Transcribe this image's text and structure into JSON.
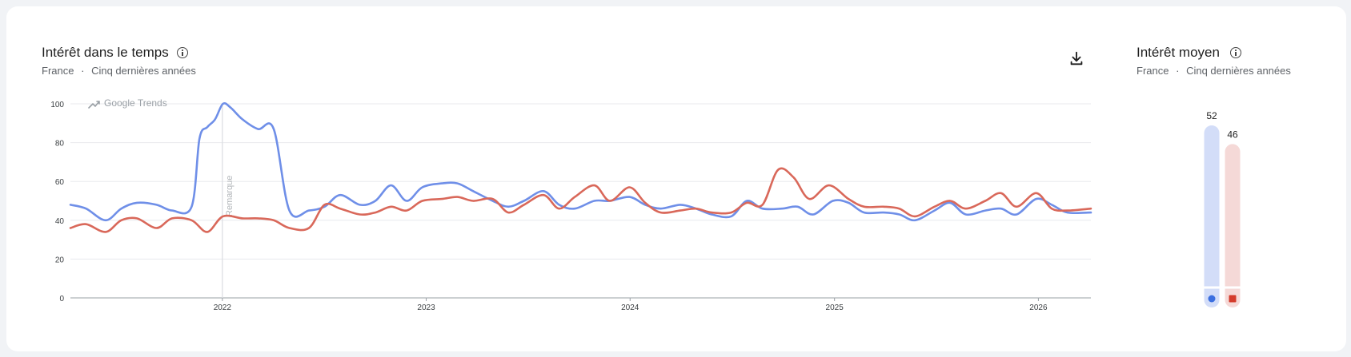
{
  "left_panel": {
    "title": "Intérêt dans le temps",
    "subtitle_region": "France",
    "subtitle_sep": "·",
    "subtitle_period": "Cinq dernières années",
    "watermark": "Google Trends",
    "note_label": "Remarque"
  },
  "right_panel": {
    "title": "Intérêt moyen",
    "subtitle_region": "France",
    "subtitle_sep": "·",
    "subtitle_period": "Cinq dernières années"
  },
  "icons": {
    "info": "info-icon",
    "download": "download-icon"
  },
  "colors": {
    "series1": "#6f8fe8",
    "series2": "#d9685a",
    "series1_light": "#d3ddf8",
    "series2_light": "#f5d9d7",
    "series1_dot": "#3b6fe0",
    "series2_dot": "#d43b2b"
  },
  "chart_data": [
    {
      "type": "line",
      "title": "Intérêt dans le temps",
      "ylim": [
        0,
        100
      ],
      "yticks": [
        0,
        20,
        40,
        60,
        80,
        100
      ],
      "xlim": [
        "2021-04-04",
        "2026-04-05"
      ],
      "xticks": [
        {
          "date": "2022-01-01",
          "label": "2022"
        },
        {
          "date": "2023-01-01",
          "label": "2023"
        },
        {
          "date": "2024-01-01",
          "label": "2024"
        },
        {
          "date": "2025-01-01",
          "label": "2025"
        },
        {
          "date": "2026-01-01",
          "label": "2026"
        }
      ],
      "annotation": {
        "date": "2022-01-01",
        "label": "Remarque"
      },
      "grid": true,
      "series": [
        {
          "color": "#6f8fe8",
          "points": [
            [
              "2021-04-04",
              48
            ],
            [
              "2021-05-02",
              46
            ],
            [
              "2021-06-06",
              40
            ],
            [
              "2021-07-04",
              46
            ],
            [
              "2021-08-01",
              49
            ],
            [
              "2021-09-05",
              48
            ],
            [
              "2021-10-03",
              45
            ],
            [
              "2021-11-07",
              47
            ],
            [
              "2021-11-21",
              82
            ],
            [
              "2021-12-05",
              88
            ],
            [
              "2021-12-19",
              92
            ],
            [
              "2022-01-02",
              100
            ],
            [
              "2022-01-16",
              98
            ],
            [
              "2022-02-06",
              92
            ],
            [
              "2022-03-06",
              87
            ],
            [
              "2022-04-03",
              87
            ],
            [
              "2022-05-01",
              45
            ],
            [
              "2022-06-05",
              45
            ],
            [
              "2022-07-03",
              47
            ],
            [
              "2022-07-31",
              53
            ],
            [
              "2022-09-04",
              48
            ],
            [
              "2022-10-02",
              50
            ],
            [
              "2022-10-30",
              58
            ],
            [
              "2022-11-27",
              50
            ],
            [
              "2022-12-25",
              57
            ],
            [
              "2023-01-29",
              59
            ],
            [
              "2023-02-26",
              59
            ],
            [
              "2023-03-26",
              55
            ],
            [
              "2023-04-30",
              50
            ],
            [
              "2023-05-28",
              47
            ],
            [
              "2023-06-25",
              50
            ],
            [
              "2023-07-30",
              55
            ],
            [
              "2023-08-27",
              48
            ],
            [
              "2023-09-24",
              46
            ],
            [
              "2023-10-29",
              50
            ],
            [
              "2023-11-26",
              50
            ],
            [
              "2023-12-31",
              52
            ],
            [
              "2024-01-28",
              48
            ],
            [
              "2024-02-25",
              46
            ],
            [
              "2024-03-31",
              48
            ],
            [
              "2024-04-28",
              46
            ],
            [
              "2024-05-26",
              43
            ],
            [
              "2024-06-30",
              42
            ],
            [
              "2024-07-28",
              50
            ],
            [
              "2024-08-25",
              46
            ],
            [
              "2024-09-29",
              46
            ],
            [
              "2024-10-27",
              47
            ],
            [
              "2024-11-24",
              43
            ],
            [
              "2024-12-29",
              50
            ],
            [
              "2025-01-26",
              49
            ],
            [
              "2025-02-23",
              44
            ],
            [
              "2025-03-30",
              44
            ],
            [
              "2025-04-27",
              43
            ],
            [
              "2025-05-25",
              40
            ],
            [
              "2025-06-29",
              45
            ],
            [
              "2025-07-27",
              49
            ],
            [
              "2025-08-24",
              43
            ],
            [
              "2025-09-28",
              45
            ],
            [
              "2025-10-26",
              46
            ],
            [
              "2025-11-23",
              43
            ],
            [
              "2025-12-28",
              51
            ],
            [
              "2026-01-25",
              48
            ],
            [
              "2026-02-22",
              44
            ],
            [
              "2026-04-05",
              44
            ]
          ]
        },
        {
          "color": "#d9685a",
          "points": [
            [
              "2021-04-04",
              36
            ],
            [
              "2021-05-02",
              38
            ],
            [
              "2021-06-06",
              34
            ],
            [
              "2021-07-04",
              40
            ],
            [
              "2021-08-01",
              41
            ],
            [
              "2021-09-05",
              36
            ],
            [
              "2021-10-03",
              41
            ],
            [
              "2021-11-07",
              40
            ],
            [
              "2021-12-05",
              34
            ],
            [
              "2022-01-02",
              42
            ],
            [
              "2022-02-06",
              41
            ],
            [
              "2022-03-06",
              41
            ],
            [
              "2022-04-03",
              40
            ],
            [
              "2022-05-01",
              36
            ],
            [
              "2022-06-05",
              36
            ],
            [
              "2022-07-03",
              48
            ],
            [
              "2022-07-31",
              46
            ],
            [
              "2022-09-04",
              43
            ],
            [
              "2022-10-02",
              44
            ],
            [
              "2022-10-30",
              47
            ],
            [
              "2022-11-27",
              45
            ],
            [
              "2022-12-25",
              50
            ],
            [
              "2023-01-29",
              51
            ],
            [
              "2023-02-26",
              52
            ],
            [
              "2023-03-26",
              50
            ],
            [
              "2023-04-30",
              51
            ],
            [
              "2023-05-28",
              44
            ],
            [
              "2023-06-25",
              48
            ],
            [
              "2023-07-30",
              53
            ],
            [
              "2023-08-27",
              46
            ],
            [
              "2023-09-24",
              52
            ],
            [
              "2023-10-29",
              58
            ],
            [
              "2023-11-26",
              50
            ],
            [
              "2023-12-31",
              57
            ],
            [
              "2024-01-28",
              49
            ],
            [
              "2024-02-25",
              44
            ],
            [
              "2024-03-31",
              45
            ],
            [
              "2024-04-28",
              46
            ],
            [
              "2024-05-26",
              44
            ],
            [
              "2024-06-30",
              44
            ],
            [
              "2024-07-28",
              49
            ],
            [
              "2024-08-25",
              48
            ],
            [
              "2024-09-22",
              66
            ],
            [
              "2024-10-20",
              62
            ],
            [
              "2024-11-17",
              51
            ],
            [
              "2024-12-22",
              58
            ],
            [
              "2025-01-26",
              51
            ],
            [
              "2025-02-23",
              47
            ],
            [
              "2025-03-30",
              47
            ],
            [
              "2025-04-27",
              46
            ],
            [
              "2025-05-25",
              42
            ],
            [
              "2025-06-29",
              47
            ],
            [
              "2025-07-27",
              50
            ],
            [
              "2025-08-24",
              46
            ],
            [
              "2025-09-28",
              50
            ],
            [
              "2025-10-26",
              54
            ],
            [
              "2025-11-23",
              47
            ],
            [
              "2025-12-28",
              54
            ],
            [
              "2026-01-25",
              46
            ],
            [
              "2026-02-22",
              45
            ],
            [
              "2026-04-05",
              46
            ]
          ]
        }
      ]
    },
    {
      "type": "bar",
      "title": "Intérêt moyen",
      "ylim": [
        0,
        100
      ],
      "series": [
        {
          "value": 52,
          "color": "#d3ddf8",
          "dot": "circle"
        },
        {
          "value": 46,
          "color": "#f5d9d7",
          "dot": "square"
        }
      ]
    }
  ]
}
